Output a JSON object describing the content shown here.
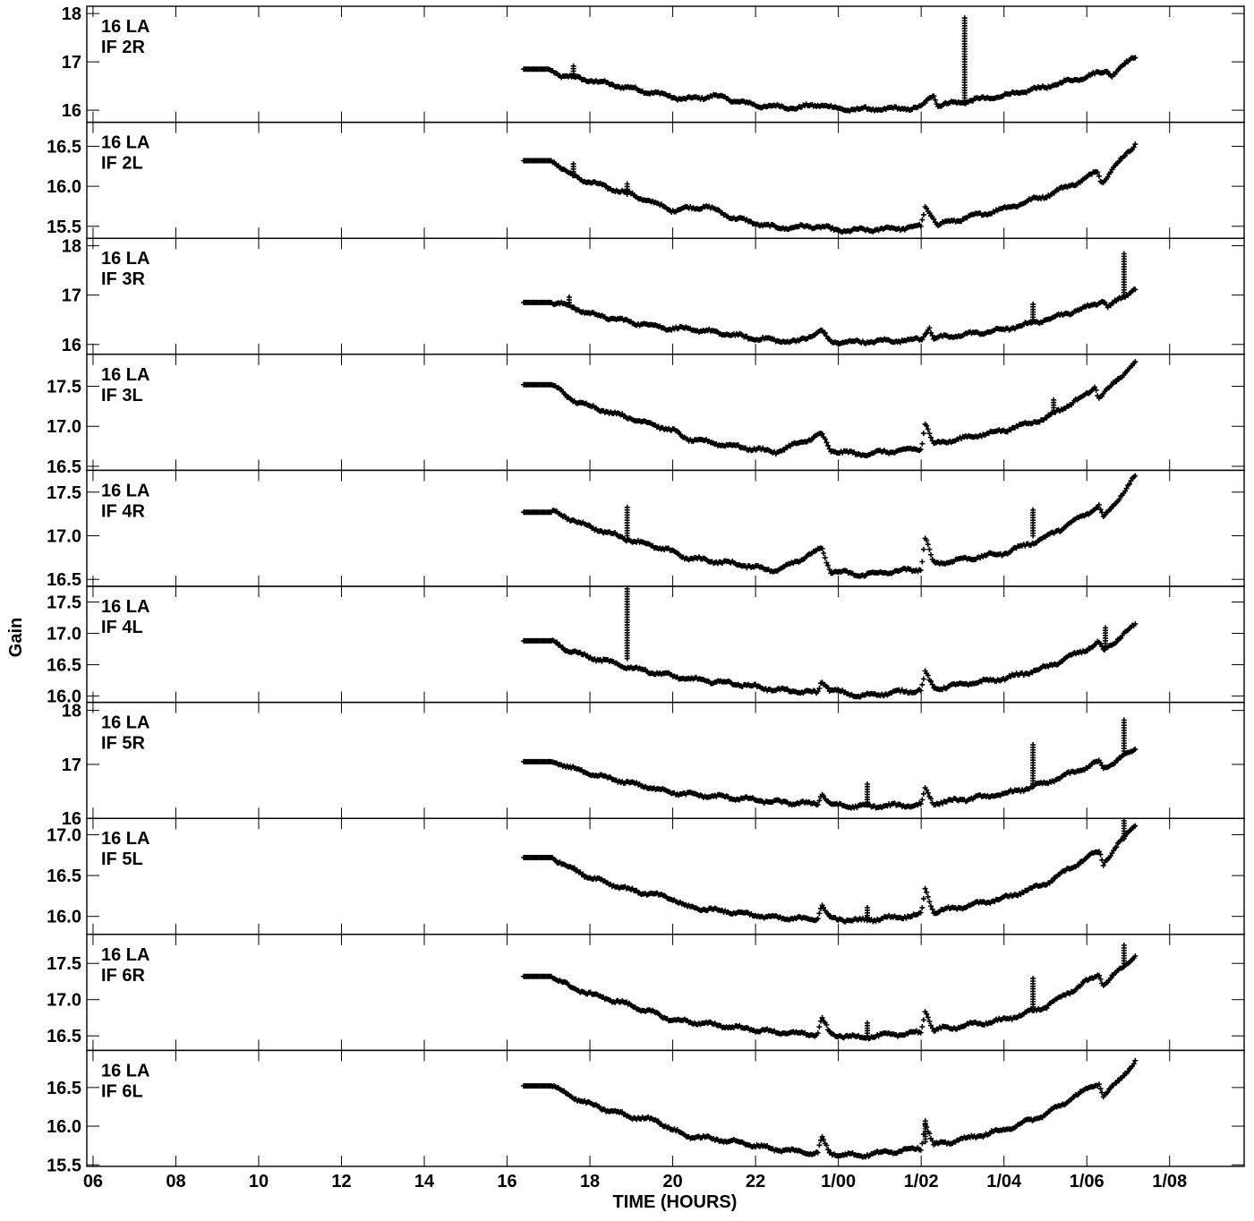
{
  "chart_data": {
    "type": "scatter",
    "ylabel": "Gain",
    "xlabel": "TIME (HOURS)",
    "x_tick_labels": [
      "06",
      "08",
      "10",
      "12",
      "14",
      "16",
      "18",
      "20",
      "22",
      "1/00",
      "1/02",
      "1/04",
      "1/06",
      "1/08"
    ],
    "x_tick_hours": [
      6,
      8,
      10,
      12,
      14,
      16,
      18,
      20,
      22,
      24,
      26,
      28,
      30,
      32
    ],
    "xlim_hours": [
      5.85,
      33.8
    ],
    "data_x_range_hours": [
      16.4,
      31.18
    ],
    "colors": {
      "marks": "#000000",
      "background": "#ffffff"
    },
    "grid": false,
    "marker": "plus",
    "panels": [
      {
        "antenna": "16 LA",
        "channel": "IF 2R",
        "ylim": [
          15.75,
          18.15
        ],
        "ytick_values": [
          16,
          17,
          18
        ],
        "ytick_labels": [
          "16",
          "17",
          "18"
        ],
        "profile": [
          [
            16.4,
            16.85
          ],
          [
            17.0,
            16.85
          ],
          [
            17.3,
            16.72
          ],
          [
            18.0,
            16.62
          ],
          [
            19.0,
            16.45
          ],
          [
            20.0,
            16.28
          ],
          [
            20.3,
            16.22
          ],
          [
            21.0,
            16.3
          ],
          [
            22.0,
            16.1
          ],
          [
            23.0,
            16.05
          ],
          [
            23.6,
            16.12
          ],
          [
            24.0,
            16.02
          ],
          [
            25.0,
            16.02
          ],
          [
            26.0,
            16.05
          ],
          [
            26.3,
            16.35
          ],
          [
            26.4,
            16.1
          ],
          [
            28.0,
            16.3
          ],
          [
            29.0,
            16.48
          ],
          [
            30.0,
            16.7
          ],
          [
            30.5,
            16.82
          ],
          [
            30.6,
            16.72
          ],
          [
            31.2,
            17.15
          ]
        ],
        "spikes": [
          {
            "x": 27.05,
            "ymin": 16.2,
            "ymax": 17.95
          },
          {
            "x": 17.6,
            "ymin": 16.7,
            "ymax": 16.95
          }
        ]
      },
      {
        "antenna": "16 LA",
        "channel": "IF 2L",
        "ylim": [
          15.35,
          16.8
        ],
        "ytick_values": [
          15.5,
          16.0,
          16.5
        ],
        "ytick_labels": [
          "15.5",
          "16.0",
          "16.5"
        ],
        "profile": [
          [
            16.4,
            16.32
          ],
          [
            17.1,
            16.32
          ],
          [
            17.5,
            16.15
          ],
          [
            18.0,
            16.05
          ],
          [
            19.0,
            15.9
          ],
          [
            20.0,
            15.7
          ],
          [
            20.3,
            15.72
          ],
          [
            20.8,
            15.75
          ],
          [
            21.5,
            15.6
          ],
          [
            22.5,
            15.48
          ],
          [
            23.6,
            15.5
          ],
          [
            23.9,
            15.45
          ],
          [
            24.5,
            15.45
          ],
          [
            25.6,
            15.48
          ],
          [
            26.0,
            15.5
          ],
          [
            26.1,
            15.75
          ],
          [
            26.4,
            15.52
          ],
          [
            28.0,
            15.72
          ],
          [
            29.0,
            15.88
          ],
          [
            30.0,
            16.1
          ],
          [
            30.25,
            16.2
          ],
          [
            30.35,
            16.05
          ],
          [
            31.2,
            16.55
          ]
        ],
        "spikes": [
          {
            "x": 17.6,
            "ymin": 16.15,
            "ymax": 16.3
          },
          {
            "x": 18.9,
            "ymin": 15.9,
            "ymax": 16.05
          }
        ]
      },
      {
        "antenna": "16 LA",
        "channel": "IF 3R",
        "ylim": [
          15.8,
          18.15
        ],
        "ytick_values": [
          16,
          17,
          18
        ],
        "ytick_labels": [
          "16",
          "17",
          "18"
        ],
        "profile": [
          [
            16.4,
            16.85
          ],
          [
            17.1,
            16.85
          ],
          [
            17.5,
            16.78
          ],
          [
            18.0,
            16.62
          ],
          [
            19.0,
            16.45
          ],
          [
            20.0,
            16.32
          ],
          [
            20.3,
            16.32
          ],
          [
            21.0,
            16.25
          ],
          [
            22.0,
            16.12
          ],
          [
            23.0,
            16.05
          ],
          [
            23.6,
            16.28
          ],
          [
            23.8,
            16.05
          ],
          [
            24.5,
            16.05
          ],
          [
            26.0,
            16.1
          ],
          [
            26.2,
            16.35
          ],
          [
            26.3,
            16.12
          ],
          [
            28.0,
            16.3
          ],
          [
            29.0,
            16.5
          ],
          [
            30.0,
            16.75
          ],
          [
            30.4,
            16.9
          ],
          [
            30.5,
            16.75
          ],
          [
            31.2,
            17.15
          ]
        ],
        "spikes": [
          {
            "x": 30.9,
            "ymin": 17.0,
            "ymax": 17.85
          },
          {
            "x": 28.7,
            "ymin": 16.5,
            "ymax": 16.85
          },
          {
            "x": 17.5,
            "ymin": 16.8,
            "ymax": 17.0
          }
        ]
      },
      {
        "antenna": "16 LA",
        "channel": "IF 3L",
        "ylim": [
          16.45,
          17.9
        ],
        "ytick_values": [
          16.5,
          17.0,
          17.5
        ],
        "ytick_labels": [
          "16.5",
          "17.0",
          "17.5"
        ],
        "profile": [
          [
            16.4,
            17.52
          ],
          [
            17.1,
            17.52
          ],
          [
            17.5,
            17.35
          ],
          [
            18.0,
            17.25
          ],
          [
            19.0,
            17.1
          ],
          [
            20.0,
            16.95
          ],
          [
            20.3,
            16.85
          ],
          [
            21.5,
            16.75
          ],
          [
            22.5,
            16.68
          ],
          [
            23.6,
            16.9
          ],
          [
            23.8,
            16.7
          ],
          [
            24.5,
            16.65
          ],
          [
            26.0,
            16.72
          ],
          [
            26.1,
            17.05
          ],
          [
            26.3,
            16.78
          ],
          [
            28.0,
            16.95
          ],
          [
            29.0,
            17.1
          ],
          [
            30.0,
            17.4
          ],
          [
            30.2,
            17.5
          ],
          [
            30.3,
            17.35
          ],
          [
            31.2,
            17.82
          ]
        ],
        "spikes": [
          {
            "x": 29.2,
            "ymin": 17.2,
            "ymax": 17.35
          }
        ]
      },
      {
        "antenna": "16 LA",
        "channel": "IF 4R",
        "ylim": [
          16.42,
          17.75
        ],
        "ytick_values": [
          16.5,
          17.0,
          17.5
        ],
        "ytick_labels": [
          "16.5",
          "17.0",
          "17.5"
        ],
        "profile": [
          [
            16.4,
            17.27
          ],
          [
            17.1,
            17.27
          ],
          [
            17.5,
            17.2
          ],
          [
            18.0,
            17.1
          ],
          [
            19.0,
            16.95
          ],
          [
            20.0,
            16.82
          ],
          [
            20.3,
            16.75
          ],
          [
            21.5,
            16.68
          ],
          [
            22.5,
            16.6
          ],
          [
            23.6,
            16.85
          ],
          [
            23.8,
            16.6
          ],
          [
            24.5,
            16.55
          ],
          [
            26.0,
            16.62
          ],
          [
            26.1,
            16.98
          ],
          [
            26.3,
            16.68
          ],
          [
            28.0,
            16.8
          ],
          [
            29.0,
            16.98
          ],
          [
            30.0,
            17.25
          ],
          [
            30.3,
            17.35
          ],
          [
            30.4,
            17.2
          ],
          [
            31.2,
            17.7
          ]
        ],
        "spikes": [
          {
            "x": 18.9,
            "ymin": 17.0,
            "ymax": 17.35
          },
          {
            "x": 28.7,
            "ymin": 17.0,
            "ymax": 17.3
          }
        ]
      },
      {
        "antenna": "16 LA",
        "channel": "IF 4L",
        "ylim": [
          15.9,
          17.75
        ],
        "ytick_values": [
          16.0,
          16.5,
          17.0,
          17.5
        ],
        "ytick_labels": [
          "16.0",
          "16.5",
          "17.0",
          "17.5"
        ],
        "profile": [
          [
            16.4,
            16.88
          ],
          [
            17.1,
            16.88
          ],
          [
            17.5,
            16.72
          ],
          [
            18.0,
            16.62
          ],
          [
            19.0,
            16.45
          ],
          [
            20.0,
            16.32
          ],
          [
            20.3,
            16.28
          ],
          [
            21.5,
            16.2
          ],
          [
            22.5,
            16.1
          ],
          [
            23.5,
            16.05
          ],
          [
            23.6,
            16.25
          ],
          [
            23.8,
            16.1
          ],
          [
            24.5,
            16.0
          ],
          [
            26.0,
            16.1
          ],
          [
            26.1,
            16.38
          ],
          [
            26.3,
            16.12
          ],
          [
            28.0,
            16.28
          ],
          [
            29.0,
            16.45
          ],
          [
            30.0,
            16.75
          ],
          [
            30.3,
            16.85
          ],
          [
            30.4,
            16.72
          ],
          [
            31.2,
            17.15
          ]
        ],
        "spikes": [
          {
            "x": 18.9,
            "ymin": 16.6,
            "ymax": 17.75
          },
          {
            "x": 30.45,
            "ymin": 16.8,
            "ymax": 17.1
          }
        ]
      },
      {
        "antenna": "16 LA",
        "channel": "IF 5R",
        "ylim": [
          16.0,
          18.15
        ],
        "ytick_values": [
          16,
          17,
          18
        ],
        "ytick_labels": [
          "16",
          "17",
          "18"
        ],
        "profile": [
          [
            16.4,
            17.05
          ],
          [
            17.1,
            17.05
          ],
          [
            17.5,
            16.95
          ],
          [
            18.0,
            16.82
          ],
          [
            19.0,
            16.65
          ],
          [
            20.0,
            16.48
          ],
          [
            20.3,
            16.45
          ],
          [
            21.5,
            16.38
          ],
          [
            22.5,
            16.3
          ],
          [
            23.5,
            16.27
          ],
          [
            23.6,
            16.48
          ],
          [
            23.8,
            16.25
          ],
          [
            24.5,
            16.22
          ],
          [
            26.0,
            16.25
          ],
          [
            26.1,
            16.55
          ],
          [
            26.3,
            16.28
          ],
          [
            28.0,
            16.45
          ],
          [
            29.0,
            16.65
          ],
          [
            30.0,
            16.95
          ],
          [
            30.3,
            17.05
          ],
          [
            30.4,
            16.92
          ],
          [
            31.2,
            17.3
          ]
        ],
        "spikes": [
          {
            "x": 30.9,
            "ymin": 17.2,
            "ymax": 17.85
          },
          {
            "x": 28.7,
            "ymin": 16.6,
            "ymax": 17.4
          },
          {
            "x": 24.7,
            "ymin": 16.3,
            "ymax": 16.65
          }
        ]
      },
      {
        "antenna": "16 LA",
        "channel": "IF 5L",
        "ylim": [
          15.78,
          17.2
        ],
        "ytick_values": [
          16.0,
          16.5,
          17.0
        ],
        "ytick_labels": [
          "16.0",
          "16.5",
          "17.0"
        ],
        "profile": [
          [
            16.4,
            16.72
          ],
          [
            17.1,
            16.72
          ],
          [
            17.5,
            16.6
          ],
          [
            18.0,
            16.48
          ],
          [
            19.0,
            16.32
          ],
          [
            20.0,
            16.22
          ],
          [
            20.3,
            16.12
          ],
          [
            21.5,
            16.05
          ],
          [
            22.5,
            15.98
          ],
          [
            23.5,
            15.97
          ],
          [
            23.6,
            16.15
          ],
          [
            23.8,
            15.97
          ],
          [
            24.5,
            15.95
          ],
          [
            26.0,
            16.02
          ],
          [
            26.1,
            16.35
          ],
          [
            26.3,
            16.05
          ],
          [
            28.0,
            16.22
          ],
          [
            29.0,
            16.4
          ],
          [
            30.0,
            16.72
          ],
          [
            30.3,
            16.8
          ],
          [
            30.4,
            16.65
          ],
          [
            31.2,
            17.15
          ]
        ],
        "spikes": [
          {
            "x": 30.9,
            "ymin": 16.95,
            "ymax": 17.2
          },
          {
            "x": 24.7,
            "ymin": 15.98,
            "ymax": 16.12
          }
        ]
      },
      {
        "antenna": "16 LA",
        "channel": "IF 6R",
        "ylim": [
          16.3,
          17.9
        ],
        "ytick_values": [
          16.5,
          17.0,
          17.5
        ],
        "ytick_labels": [
          "16.5",
          "17.0",
          "17.5"
        ],
        "profile": [
          [
            16.4,
            17.32
          ],
          [
            17.1,
            17.32
          ],
          [
            17.5,
            17.18
          ],
          [
            18.0,
            17.08
          ],
          [
            19.0,
            16.92
          ],
          [
            20.0,
            16.72
          ],
          [
            20.3,
            16.7
          ],
          [
            21.5,
            16.62
          ],
          [
            22.5,
            16.55
          ],
          [
            23.5,
            16.52
          ],
          [
            23.6,
            16.75
          ],
          [
            23.8,
            16.52
          ],
          [
            24.5,
            16.48
          ],
          [
            26.0,
            16.55
          ],
          [
            26.1,
            16.85
          ],
          [
            26.3,
            16.58
          ],
          [
            28.0,
            16.72
          ],
          [
            29.0,
            16.9
          ],
          [
            30.0,
            17.25
          ],
          [
            30.3,
            17.35
          ],
          [
            30.4,
            17.2
          ],
          [
            31.2,
            17.62
          ]
        ],
        "spikes": [
          {
            "x": 30.9,
            "ymin": 17.5,
            "ymax": 17.75
          },
          {
            "x": 28.7,
            "ymin": 16.9,
            "ymax": 17.3
          },
          {
            "x": 24.7,
            "ymin": 16.5,
            "ymax": 16.7
          }
        ]
      },
      {
        "antenna": "16 LA",
        "channel": "IF 6L",
        "ylim": [
          15.48,
          16.98
        ],
        "ytick_values": [
          15.5,
          16.0,
          16.5
        ],
        "ytick_labels": [
          "15.5",
          "16.0",
          "16.5"
        ],
        "profile": [
          [
            16.4,
            16.52
          ],
          [
            17.1,
            16.52
          ],
          [
            17.5,
            16.4
          ],
          [
            18.0,
            16.28
          ],
          [
            19.0,
            16.12
          ],
          [
            19.6,
            16.08
          ],
          [
            20.0,
            15.95
          ],
          [
            20.3,
            15.88
          ],
          [
            21.5,
            15.8
          ],
          [
            22.5,
            15.7
          ],
          [
            23.5,
            15.65
          ],
          [
            23.6,
            15.85
          ],
          [
            23.8,
            15.65
          ],
          [
            24.5,
            15.62
          ],
          [
            26.0,
            15.72
          ],
          [
            26.1,
            16.05
          ],
          [
            26.3,
            15.75
          ],
          [
            28.0,
            15.95
          ],
          [
            29.0,
            16.15
          ],
          [
            30.0,
            16.48
          ],
          [
            30.3,
            16.55
          ],
          [
            30.4,
            16.38
          ],
          [
            31.2,
            16.85
          ]
        ],
        "spikes": [
          {
            "x": 26.1,
            "ymin": 15.8,
            "ymax": 16.1
          }
        ]
      }
    ]
  }
}
